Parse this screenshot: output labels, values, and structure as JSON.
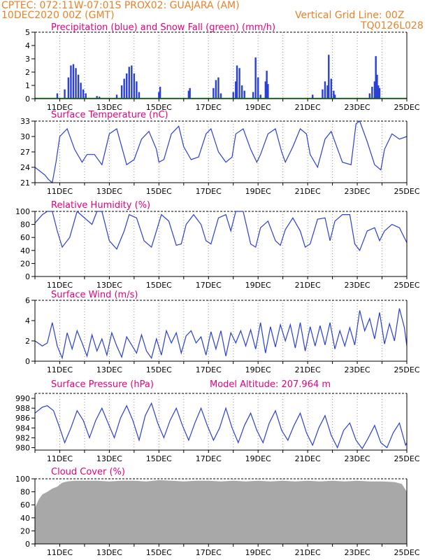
{
  "header": {
    "line1": "CPTEC:   072:11W-07:01S   PROX02: GUAJARA (AM)",
    "line2": "10DEC2020 00Z (GMT)",
    "grid_note": "Vertical Grid Line: 00Z",
    "run_code": "TQ0126L028"
  },
  "colors": {
    "header": "#e8832a",
    "title": "#e6007e",
    "line": "#2a3fd6",
    "precip": "#2a3fd6",
    "snow": "#00a000",
    "cloud": "#a8a8a8",
    "grid": "#9a9a9a"
  },
  "x_ticks": [
    "11DEC",
    "13DEC",
    "15DEC",
    "17DEC",
    "19DEC",
    "21DEC",
    "23DEC",
    "25DEC"
  ],
  "chart_data": [
    {
      "type": "bar",
      "title": "Precipitation (blue) and Snow Fall (green) (mm/h)",
      "ylim": [
        0,
        5
      ],
      "yticks": [
        "0",
        "1",
        "2",
        "3",
        "4",
        "5"
      ],
      "x_day_range": [
        10,
        25
      ],
      "bars": [
        {
          "day": 10.9,
          "value": 0.4
        },
        {
          "day": 11.2,
          "value": 0.7
        },
        {
          "day": 11.35,
          "value": 1.6
        },
        {
          "day": 11.45,
          "value": 2.5
        },
        {
          "day": 11.55,
          "value": 2.6
        },
        {
          "day": 11.65,
          "value": 2.3
        },
        {
          "day": 11.75,
          "value": 1.8
        },
        {
          "day": 11.85,
          "value": 1.2
        },
        {
          "day": 11.95,
          "value": 0.7
        },
        {
          "day": 12.05,
          "value": 0.4
        },
        {
          "day": 12.5,
          "value": 0.2
        },
        {
          "day": 12.6,
          "value": 0.15
        },
        {
          "day": 13.3,
          "value": 0.3
        },
        {
          "day": 13.5,
          "value": 1.0
        },
        {
          "day": 13.6,
          "value": 1.5
        },
        {
          "day": 13.7,
          "value": 1.9
        },
        {
          "day": 13.8,
          "value": 2.4
        },
        {
          "day": 13.9,
          "value": 2.5
        },
        {
          "day": 14.0,
          "value": 1.9
        },
        {
          "day": 14.1,
          "value": 1.3
        },
        {
          "day": 14.2,
          "value": 0.5
        },
        {
          "day": 15.0,
          "value": 0.5
        },
        {
          "day": 15.05,
          "value": 0.9
        },
        {
          "day": 16.2,
          "value": 0.6
        },
        {
          "day": 16.25,
          "value": 0.8
        },
        {
          "day": 17.2,
          "value": 0.8
        },
        {
          "day": 17.3,
          "value": 1.4
        },
        {
          "day": 17.4,
          "value": 1.6
        },
        {
          "day": 17.5,
          "value": 0.4
        },
        {
          "day": 18.0,
          "value": 0.5
        },
        {
          "day": 18.1,
          "value": 1.3
        },
        {
          "day": 18.15,
          "value": 2.5
        },
        {
          "day": 18.25,
          "value": 2.3
        },
        {
          "day": 18.35,
          "value": 1.0
        },
        {
          "day": 18.45,
          "value": 0.6
        },
        {
          "day": 18.8,
          "value": 0.5
        },
        {
          "day": 18.9,
          "value": 3.1
        },
        {
          "day": 19.0,
          "value": 1.6
        },
        {
          "day": 19.1,
          "value": 0.3
        },
        {
          "day": 19.3,
          "value": 1.3
        },
        {
          "day": 19.35,
          "value": 2.1
        },
        {
          "day": 19.4,
          "value": 1.1
        },
        {
          "day": 21.2,
          "value": 0.3
        },
        {
          "day": 21.6,
          "value": 0.7
        },
        {
          "day": 21.7,
          "value": 1.3
        },
        {
          "day": 21.8,
          "value": 1.0
        },
        {
          "day": 21.85,
          "value": 3.3
        },
        {
          "day": 21.95,
          "value": 1.5
        },
        {
          "day": 22.05,
          "value": 0.6
        },
        {
          "day": 22.1,
          "value": 0.3
        },
        {
          "day": 23.5,
          "value": 0.4
        },
        {
          "day": 23.6,
          "value": 0.9
        },
        {
          "day": 23.7,
          "value": 1.3
        },
        {
          "day": 23.75,
          "value": 3.2
        },
        {
          "day": 23.8,
          "value": 1.8
        },
        {
          "day": 23.85,
          "value": 1.0
        },
        {
          "day": 23.9,
          "value": 0.8
        }
      ],
      "snow_line": 0
    },
    {
      "type": "line",
      "title": "Surface Temperature (nC)",
      "ylim": [
        21,
        33
      ],
      "yticks": [
        "21",
        "24",
        "27",
        "30",
        "33"
      ],
      "x_day_range": [
        10,
        25
      ],
      "x": [
        10,
        10.4,
        10.55,
        10.7,
        10.85,
        11.0,
        11.3,
        11.6,
        11.9,
        12.1,
        12.4,
        12.7,
        13.0,
        13.3,
        13.5,
        13.7,
        14.0,
        14.3,
        14.6,
        14.9,
        15.0,
        15.2,
        15.5,
        15.8,
        16.0,
        16.3,
        16.6,
        16.9,
        17.1,
        17.4,
        17.7,
        17.95,
        18.1,
        18.4,
        18.7,
        18.95,
        19.1,
        19.4,
        19.7,
        19.95,
        20.1,
        20.4,
        20.7,
        20.95,
        21.1,
        21.4,
        21.7,
        21.95,
        22.1,
        22.4,
        22.75,
        22.95,
        23.1,
        23.4,
        23.7,
        23.95,
        24.1,
        24.4,
        24.7,
        25.0
      ],
      "values": [
        24.0,
        22.5,
        21.6,
        21.0,
        25.0,
        30.0,
        31.5,
        27.5,
        25.0,
        26.5,
        26.5,
        24.5,
        30.5,
        31.5,
        28.0,
        24.5,
        25.5,
        29.5,
        31.0,
        27.5,
        25.0,
        25.5,
        30.5,
        32.0,
        28.0,
        25.5,
        26.0,
        30.5,
        31.5,
        27.0,
        25.0,
        26.0,
        30.5,
        31.5,
        27.5,
        25.0,
        26.5,
        30.5,
        31.5,
        27.0,
        25.0,
        28.0,
        31.5,
        30.5,
        26.5,
        24.0,
        29.5,
        31.0,
        29.0,
        25.0,
        24.5,
        32.5,
        33.0,
        29.0,
        24.5,
        23.5,
        27.5,
        30.5,
        29.5,
        30.0
      ]
    },
    {
      "type": "line",
      "title": "Relative Humidity (%)",
      "ylim": [
        0,
        100
      ],
      "yticks": [
        "0",
        "20",
        "40",
        "60",
        "80",
        "100"
      ],
      "x_day_range": [
        10,
        25
      ],
      "x": [
        10,
        10.3,
        10.5,
        10.7,
        10.9,
        11.1,
        11.4,
        11.7,
        12.0,
        12.3,
        12.5,
        12.7,
        13.0,
        13.3,
        13.6,
        13.8,
        14.1,
        14.4,
        14.7,
        14.9,
        15.1,
        15.4,
        15.7,
        15.9,
        16.1,
        16.4,
        16.7,
        16.9,
        17.1,
        17.4,
        17.7,
        17.9,
        18.1,
        18.4,
        18.7,
        18.9,
        19.1,
        19.4,
        19.7,
        19.9,
        20.1,
        20.4,
        20.7,
        20.9,
        21.1,
        21.4,
        21.7,
        21.9,
        22.1,
        22.4,
        22.7,
        22.9,
        23.1,
        23.4,
        23.7,
        23.9,
        24.1,
        24.4,
        24.7,
        25.0
      ],
      "values": [
        82,
        95,
        100,
        100,
        70,
        45,
        60,
        100,
        90,
        80,
        100,
        100,
        55,
        42,
        70,
        95,
        90,
        55,
        45,
        70,
        95,
        85,
        48,
        50,
        80,
        95,
        80,
        55,
        50,
        90,
        95,
        70,
        100,
        100,
        50,
        45,
        75,
        85,
        55,
        48,
        72,
        90,
        70,
        45,
        50,
        88,
        90,
        55,
        85,
        95,
        95,
        50,
        40,
        70,
        75,
        55,
        70,
        80,
        75,
        52
      ]
    },
    {
      "type": "line",
      "title": "Surface Wind (m/s)",
      "ylim": [
        0,
        6
      ],
      "yticks": [
        "0",
        "2",
        "4",
        "6"
      ],
      "x_day_range": [
        10,
        25
      ],
      "x": [
        10,
        10.3,
        10.5,
        10.7,
        10.9,
        11.1,
        11.3,
        11.5,
        11.7,
        11.9,
        12.1,
        12.3,
        12.5,
        12.7,
        12.9,
        13.1,
        13.3,
        13.5,
        13.7,
        13.9,
        14.1,
        14.3,
        14.5,
        14.7,
        14.9,
        15.1,
        15.3,
        15.5,
        15.7,
        15.9,
        16.1,
        16.3,
        16.5,
        16.7,
        16.9,
        17.1,
        17.3,
        17.5,
        17.7,
        17.9,
        18.1,
        18.3,
        18.5,
        18.7,
        18.9,
        19.1,
        19.3,
        19.5,
        19.7,
        19.9,
        20.1,
        20.3,
        20.5,
        20.7,
        20.9,
        21.1,
        21.3,
        21.5,
        21.7,
        21.9,
        22.1,
        22.3,
        22.5,
        22.7,
        22.9,
        23.1,
        23.3,
        23.5,
        23.7,
        23.9,
        24.1,
        24.3,
        24.5,
        24.7,
        24.9,
        25.0
      ],
      "values": [
        2.0,
        1.5,
        1.8,
        3.8,
        1.5,
        0.3,
        2.8,
        1.2,
        3.0,
        1.8,
        0.5,
        2.6,
        1.0,
        2.2,
        0.6,
        2.8,
        1.5,
        0.4,
        2.4,
        1.6,
        0.8,
        2.6,
        1.0,
        0.3,
        2.2,
        0.6,
        3.0,
        1.8,
        2.8,
        0.8,
        2.5,
        3.0,
        1.8,
        2.4,
        0.6,
        2.9,
        1.2,
        3.0,
        0.5,
        2.8,
        1.8,
        3.0,
        1.5,
        3.1,
        1.2,
        3.8,
        0.8,
        3.4,
        1.4,
        3.6,
        2.0,
        3.6,
        1.3,
        3.8,
        1.0,
        3.4,
        1.5,
        3.5,
        1.6,
        3.8,
        1.2,
        3.0,
        1.5,
        3.3,
        1.6,
        5.0,
        3.0,
        4.2,
        2.2,
        4.8,
        1.7,
        3.7,
        2.0,
        5.2,
        3.3,
        1.5
      ]
    },
    {
      "type": "line",
      "title": "Surface Pressure (hPa)",
      "annotation": "Model Altitude: 207.964 m",
      "ylim": [
        979.5,
        991
      ],
      "yticks": [
        "980",
        "982",
        "984",
        "986",
        "988",
        "990"
      ],
      "x_day_range": [
        10,
        25
      ],
      "x": [
        10,
        10.3,
        10.5,
        10.75,
        11.0,
        11.2,
        11.45,
        11.7,
        11.95,
        12.2,
        12.45,
        12.7,
        12.95,
        13.2,
        13.45,
        13.7,
        13.95,
        14.2,
        14.45,
        14.7,
        14.95,
        15.2,
        15.45,
        15.7,
        15.95,
        16.2,
        16.45,
        16.7,
        16.95,
        17.2,
        17.45,
        17.7,
        17.95,
        18.2,
        18.45,
        18.7,
        18.95,
        19.2,
        19.45,
        19.7,
        19.95,
        20.2,
        20.45,
        20.7,
        20.95,
        21.2,
        21.45,
        21.7,
        21.95,
        22.2,
        22.45,
        22.7,
        22.95,
        23.2,
        23.45,
        23.7,
        23.95,
        24.2,
        24.45,
        24.7,
        24.95,
        25.0
      ],
      "values": [
        987.0,
        988.2,
        988.5,
        987.5,
        984.0,
        981.0,
        984.0,
        987.5,
        985.5,
        982.0,
        985.5,
        988.0,
        985.0,
        982.0,
        986.0,
        988.5,
        985.5,
        981.5,
        986.5,
        989.0,
        985.0,
        982.0,
        985.5,
        988.0,
        984.5,
        981.5,
        985.0,
        988.0,
        984.5,
        981.5,
        984.0,
        988.0,
        984.0,
        981.0,
        984.5,
        987.0,
        983.5,
        981.0,
        985.0,
        987.5,
        983.5,
        981.5,
        984.5,
        987.0,
        983.0,
        980.5,
        984.0,
        986.5,
        982.5,
        980.0,
        983.5,
        985.0,
        981.5,
        979.8,
        982.0,
        984.5,
        981.0,
        980.0,
        983.0,
        985.0,
        980.5,
        981.0
      ]
    },
    {
      "type": "area",
      "title": "Cloud Cover (%)",
      "ylim": [
        0,
        100
      ],
      "yticks": [
        "0",
        "20",
        "40",
        "60",
        "80",
        "100"
      ],
      "x_day_range": [
        10,
        25
      ],
      "x": [
        10,
        10.15,
        10.3,
        10.5,
        10.7,
        10.9,
        11.1,
        11.3,
        11.6,
        12.0,
        12.5,
        13.0,
        13.5,
        14.0,
        14.5,
        15.0,
        15.5,
        16.0,
        16.5,
        17.0,
        17.5,
        18.0,
        18.5,
        19.0,
        19.5,
        20.0,
        20.5,
        21.0,
        21.5,
        22.0,
        22.5,
        23.0,
        23.5,
        24.0,
        24.5,
        24.8,
        25.0
      ],
      "values": [
        55,
        68,
        76,
        80,
        85,
        88,
        94,
        96,
        97,
        97,
        97,
        96,
        97,
        97,
        96,
        98,
        97,
        96,
        97,
        97,
        96,
        97,
        96,
        97,
        96,
        97,
        96,
        97,
        96,
        97,
        96,
        97,
        96,
        96,
        95,
        92,
        80
      ]
    }
  ]
}
